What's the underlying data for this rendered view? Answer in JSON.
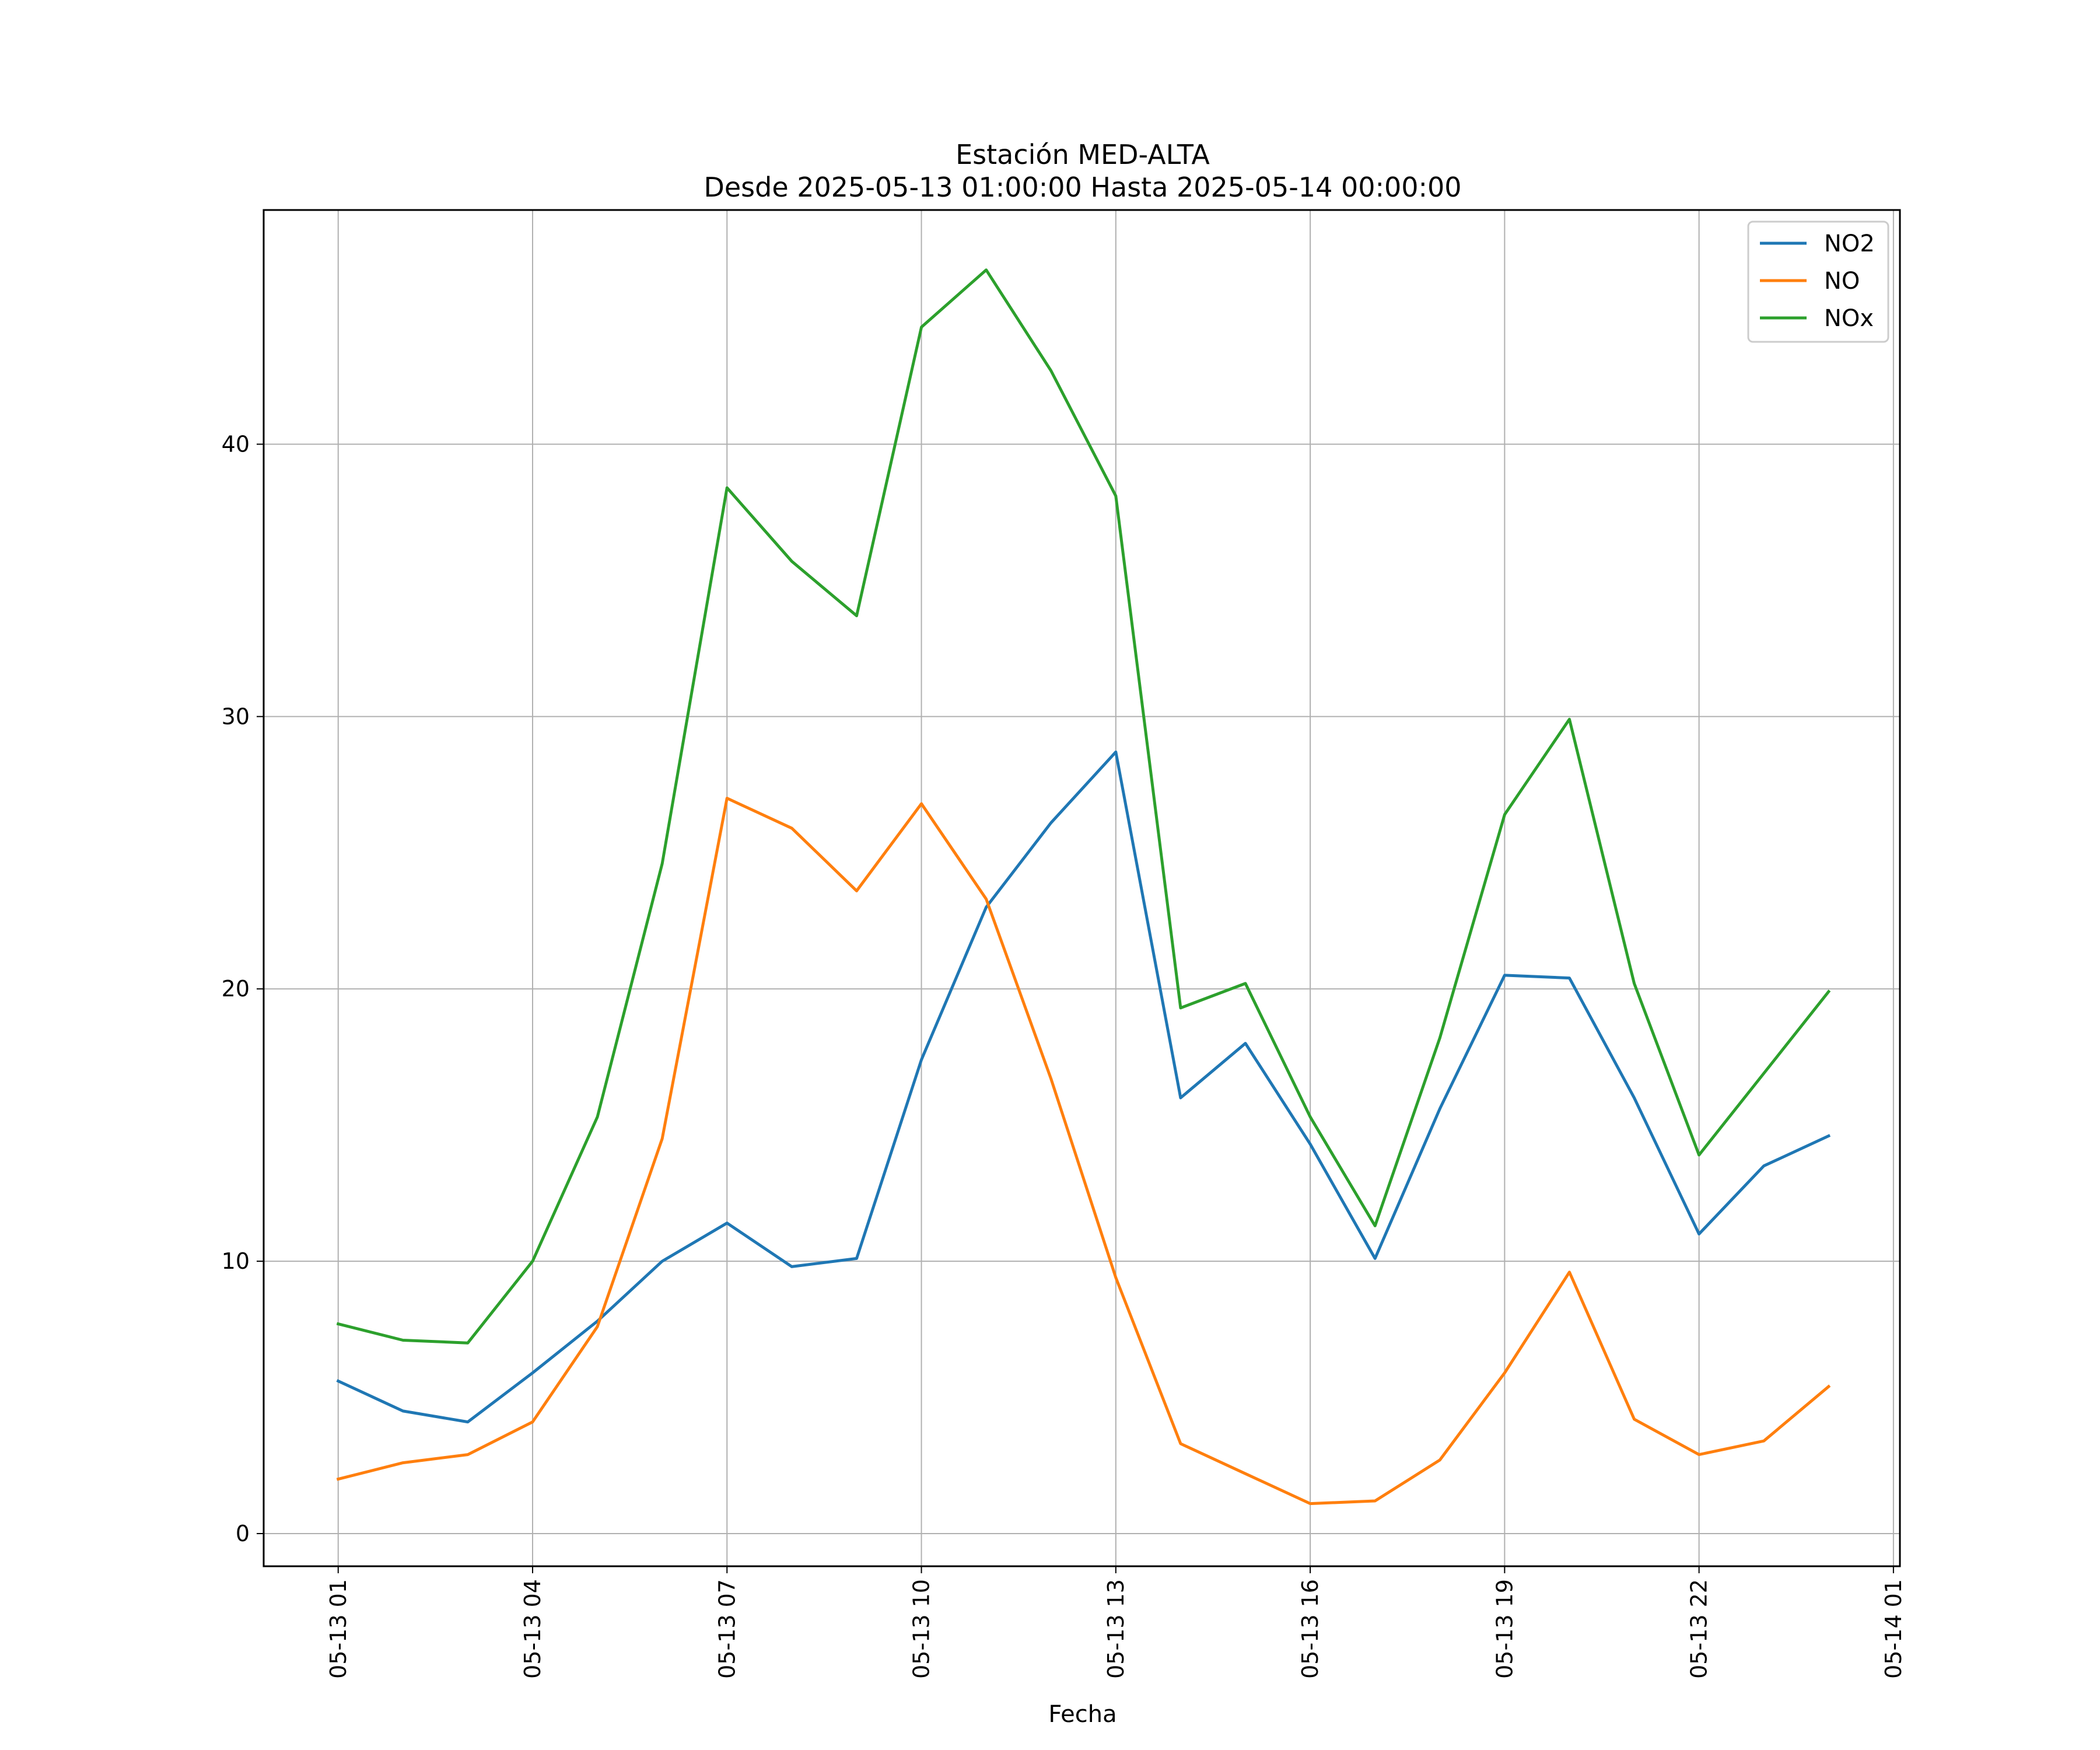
{
  "chart_data": {
    "type": "line",
    "title": "Estación MED-ALTA",
    "subtitle": "Desde 2025-05-13 01:00:00 Hasta 2025-05-14 00:00:00",
    "xlabel": "Fecha",
    "ylabel": "",
    "x": [
      "2025-05-13 01:00",
      "2025-05-13 02:00",
      "2025-05-13 03:00",
      "2025-05-13 04:00",
      "2025-05-13 05:00",
      "2025-05-13 06:00",
      "2025-05-13 07:00",
      "2025-05-13 08:00",
      "2025-05-13 09:00",
      "2025-05-13 10:00",
      "2025-05-13 11:00",
      "2025-05-13 12:00",
      "2025-05-13 13:00",
      "2025-05-13 14:00",
      "2025-05-13 15:00",
      "2025-05-13 16:00",
      "2025-05-13 17:00",
      "2025-05-13 18:00",
      "2025-05-13 19:00",
      "2025-05-13 20:00",
      "2025-05-13 21:00",
      "2025-05-13 22:00",
      "2025-05-13 23:00",
      "2025-05-14 00:00"
    ],
    "xlim": [
      "2025-05-12 23:51",
      "2025-05-14 01:06"
    ],
    "x_ticks": [
      {
        "value": "2025-05-13 01:00",
        "label": "05-13 01"
      },
      {
        "value": "2025-05-13 04:00",
        "label": "05-13 04"
      },
      {
        "value": "2025-05-13 07:00",
        "label": "05-13 07"
      },
      {
        "value": "2025-05-13 10:00",
        "label": "05-13 10"
      },
      {
        "value": "2025-05-13 13:00",
        "label": "05-13 13"
      },
      {
        "value": "2025-05-13 16:00",
        "label": "05-13 16"
      },
      {
        "value": "2025-05-13 19:00",
        "label": "05-13 19"
      },
      {
        "value": "2025-05-13 22:00",
        "label": "05-13 22"
      },
      {
        "value": "2025-05-14 01:00",
        "label": "05-14 01"
      }
    ],
    "y_ticks": [
      0,
      10,
      20,
      30,
      40
    ],
    "ylim": [
      -1.2,
      48.6
    ],
    "grid": true,
    "legend_position": "top-right",
    "series": [
      {
        "name": "NO2",
        "color": "#1f77b4",
        "values": [
          5.6,
          4.5,
          4.1,
          5.9,
          7.8,
          10.0,
          11.4,
          9.8,
          10.1,
          17.4,
          23.0,
          26.1,
          28.7,
          16.0,
          18.0,
          14.3,
          10.1,
          15.6,
          20.5,
          20.4,
          16.0,
          11.0,
          13.5,
          14.6
        ]
      },
      {
        "name": "NO",
        "color": "#ff7f0e",
        "values": [
          2.0,
          2.6,
          2.9,
          4.1,
          7.6,
          14.5,
          27.0,
          25.9,
          23.6,
          26.8,
          23.3,
          16.7,
          9.4,
          3.3,
          2.2,
          1.1,
          1.2,
          2.7,
          5.9,
          9.6,
          4.2,
          2.9,
          3.4,
          5.4
        ]
      },
      {
        "name": "NOx",
        "color": "#2ca02c",
        "values": [
          7.7,
          7.1,
          7.0,
          10.0,
          15.3,
          24.6,
          38.4,
          35.7,
          33.7,
          44.3,
          46.4,
          42.7,
          38.1,
          19.3,
          20.2,
          15.3,
          11.3,
          18.2,
          26.4,
          29.9,
          20.2,
          13.9,
          16.9,
          19.9
        ]
      }
    ]
  }
}
